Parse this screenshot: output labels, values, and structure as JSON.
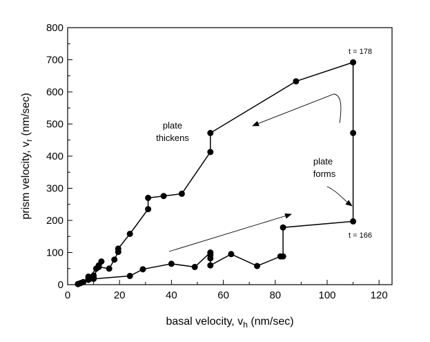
{
  "chart_data": {
    "type": "line",
    "xlabel": "basal velocity, v",
    "xlabel_sub": "h",
    "xlabel_units": " (nm/sec)",
    "ylabel": "prism velocity, v",
    "ylabel_sub": "r",
    "ylabel_units": " (nm/sec)",
    "xlim": [
      0,
      125
    ],
    "ylim": [
      0,
      800
    ],
    "xticks": [
      0,
      20,
      40,
      60,
      80,
      100,
      120
    ],
    "yticks": [
      0,
      100,
      200,
      300,
      400,
      500,
      600,
      700,
      800
    ],
    "grid": false,
    "series": [
      {
        "name": "trajectory",
        "x": [
          4,
          6,
          9,
          10,
          12,
          16,
          18,
          19.5,
          19.5,
          24,
          31,
          31,
          37,
          44,
          55,
          55,
          88,
          110,
          110,
          110,
          83,
          83,
          82,
          73,
          63,
          55,
          55,
          55,
          55,
          49,
          40,
          29,
          24,
          10,
          8,
          8,
          10,
          12,
          13,
          11,
          8,
          5,
          4
        ],
        "y": [
          2,
          8,
          20,
          28,
          55,
          50,
          78,
          102,
          112,
          158,
          235,
          270,
          276,
          283,
          413,
          472,
          633,
          692,
          472,
          197,
          178,
          88,
          88,
          58,
          95,
          60,
          82,
          92,
          100,
          55,
          65,
          48,
          27,
          18,
          15,
          25,
          22,
          60,
          72,
          50,
          20,
          5,
          2
        ]
      }
    ],
    "annotations": {
      "t_end": "t = 178",
      "t_start": "t = 166",
      "plate_thickens_line1": "plate",
      "plate_thickens_line2": "thickens",
      "plate_forms_line1": "plate",
      "plate_forms_line2": "forms"
    }
  }
}
